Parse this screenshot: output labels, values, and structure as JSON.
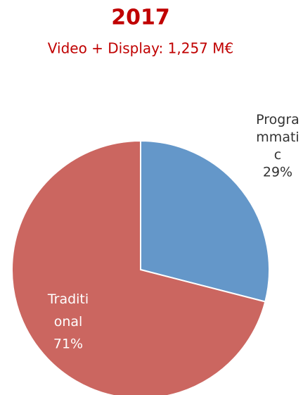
{
  "chart_data": {
    "type": "pie",
    "title": "2017",
    "subtitle": "Video + Display: 1,257 M€",
    "categories": [
      "Programmatic",
      "Traditional"
    ],
    "values": [
      29,
      71
    ],
    "value_labels": [
      "29%",
      "71%"
    ],
    "colors": [
      "#6497c9",
      "#cb6660"
    ]
  }
}
